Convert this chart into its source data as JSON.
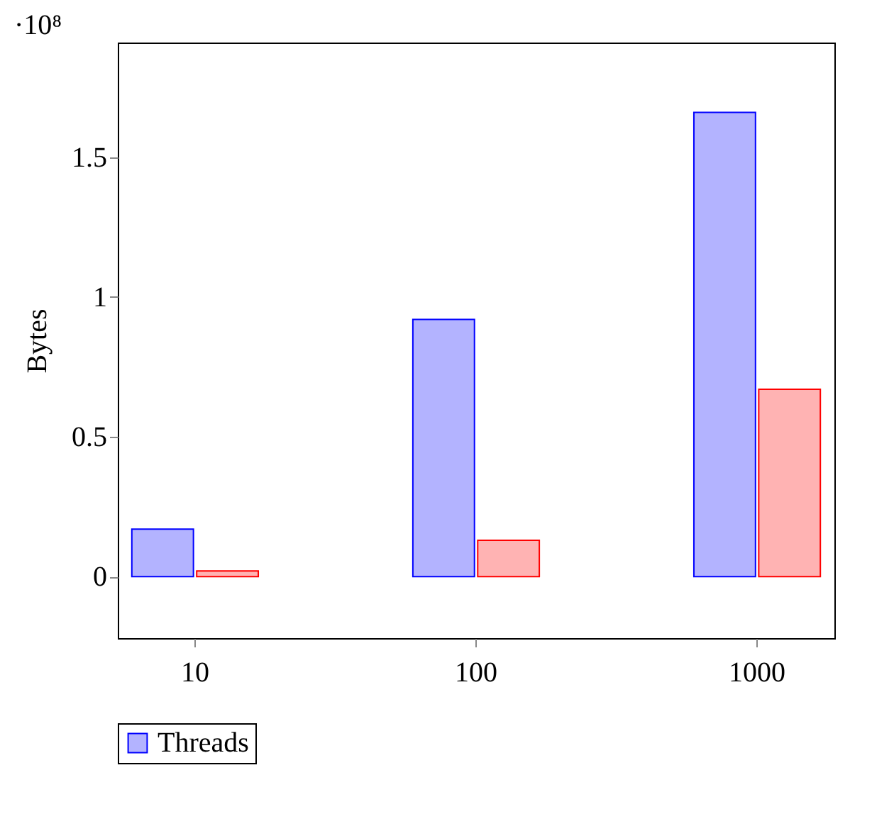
{
  "chart_data": {
    "type": "bar",
    "ylabel": "Bytes",
    "annotations": [
      "·10⁸"
    ],
    "categories": [
      "10",
      "100",
      "1000"
    ],
    "series": [
      {
        "name": "Threads",
        "color": "#b3b3ff",
        "values": [
          0.17,
          0.92,
          1.66
        ]
      },
      {
        "color": "#ffb3b3",
        "values": [
          0.02,
          0.13,
          0.67
        ]
      }
    ],
    "ylim": [
      -0.22,
      1.91
    ],
    "yticks": [
      0,
      0.5,
      1,
      1.5
    ],
    "grid": false,
    "legend": "bottom"
  }
}
